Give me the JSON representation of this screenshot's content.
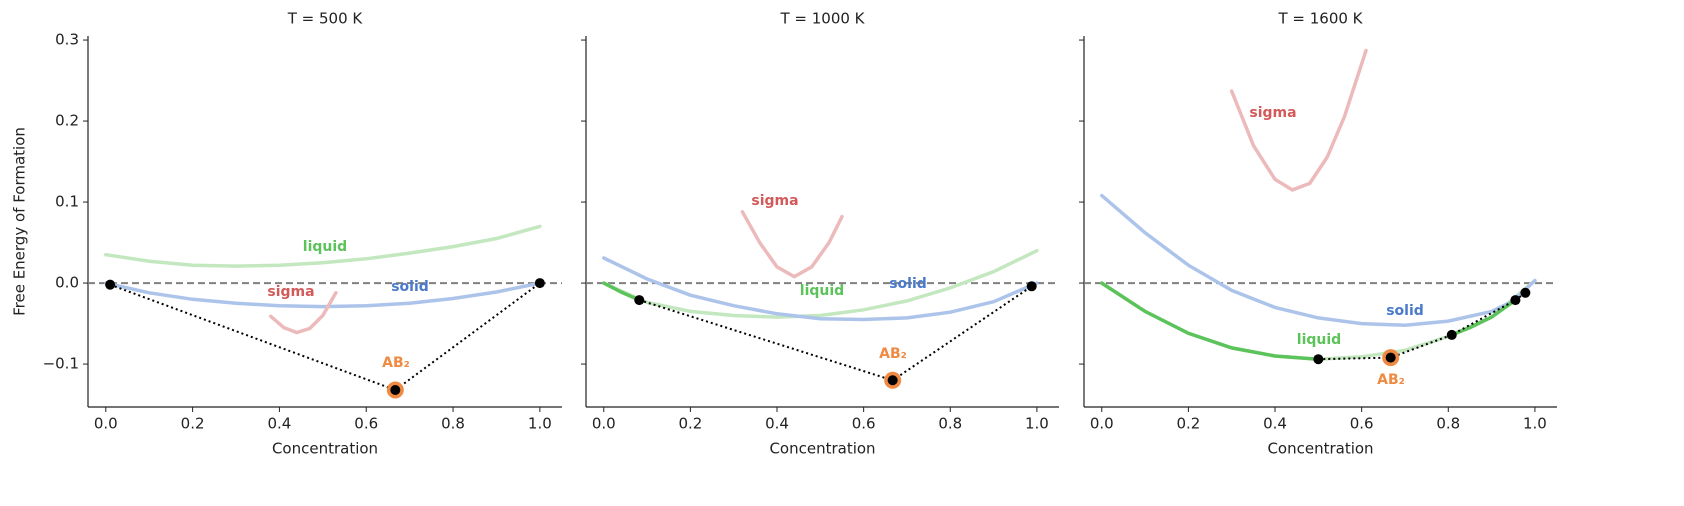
{
  "chart_data": [
    {
      "type": "line",
      "title": "T = 500 K",
      "xlabel": "Concentration",
      "ylabel": "Free Energy of Formation",
      "xlim": [
        -0.041,
        1.051
      ],
      "ylim": [
        -0.153,
        0.305
      ],
      "xticks": [
        {
          "value": 0,
          "label": "0.0"
        },
        0.2,
        0.4,
        0.6,
        0.8,
        {
          "value": 1,
          "label": "1.0"
        }
      ],
      "yticks": [
        {
          "value": -0.1,
          "label": "−0.1"
        },
        {
          "value": 0,
          "label": "0.0"
        },
        0.1,
        0.2,
        0.3
      ],
      "hline": 0,
      "series": [
        {
          "name": "liquid",
          "color": "#c3e7bf",
          "label_color": "#5cc35a",
          "x": [
            0,
            0.1,
            0.2,
            0.3,
            0.4,
            0.5,
            0.6,
            0.7,
            0.8,
            0.9,
            1.0
          ],
          "values": [
            0.035,
            0.027,
            0.022,
            0.021,
            0.022,
            0.025,
            0.03,
            0.037,
            0.045,
            0.055,
            0.07
          ]
        },
        {
          "name": "solid",
          "color": "#adc4ea",
          "label_color": "#4a7acb",
          "x": [
            0,
            0.1,
            0.2,
            0.3,
            0.4,
            0.5,
            0.6,
            0.7,
            0.8,
            0.9,
            1.0
          ],
          "values": [
            0,
            -0.012,
            -0.02,
            -0.025,
            -0.028,
            -0.029,
            -0.028,
            -0.025,
            -0.019,
            -0.011,
            0
          ]
        },
        {
          "name": "sigma",
          "color": "#ecbaba",
          "label_color": "#d35a5a",
          "x": [
            0.38,
            0.41,
            0.44,
            0.47,
            0.5,
            0.53
          ],
          "values": [
            -0.041,
            -0.055,
            -0.061,
            -0.056,
            -0.04,
            -0.012
          ]
        },
        {
          "color": "#000000",
          "style": "dotted",
          "marker": "dot",
          "x": [
            0.01,
            0.667,
            1.0
          ],
          "values": [
            -0.002,
            -0.132,
            0
          ]
        },
        {
          "name": "AB₂",
          "color": "#ef8a42",
          "label_color": "#ef8a42",
          "marker": "ring",
          "x": [
            0.667
          ],
          "values": [
            -0.132
          ]
        }
      ]
    },
    {
      "type": "line",
      "title": "T = 1000 K",
      "xlabel": "Concentration",
      "xlim": [
        -0.041,
        1.051
      ],
      "ylim": [
        -0.153,
        0.305
      ],
      "xticks": [
        {
          "value": 0,
          "label": "0.0"
        },
        0.2,
        0.4,
        0.6,
        0.8,
        {
          "value": 1,
          "label": "1.0"
        }
      ],
      "yticks": [
        -0.1,
        0,
        0.1,
        0.2,
        0.3
      ],
      "hline": 0,
      "series": [
        {
          "name": "liquid",
          "color": "#c3e7bf",
          "label_color": "#5cc35a",
          "x": [
            0,
            0.1,
            0.2,
            0.3,
            0.4,
            0.5,
            0.6,
            0.7,
            0.8,
            0.9,
            1.0
          ],
          "values": [
            0,
            -0.024,
            -0.035,
            -0.04,
            -0.042,
            -0.04,
            -0.033,
            -0.022,
            -0.006,
            0.014,
            0.04
          ]
        },
        {
          "name": "solid",
          "color": "#adc4ea",
          "label_color": "#4a7acb",
          "x": [
            0,
            0.1,
            0.2,
            0.3,
            0.4,
            0.5,
            0.6,
            0.7,
            0.8,
            0.9,
            1.0
          ],
          "values": [
            0.031,
            0.005,
            -0.015,
            -0.028,
            -0.038,
            -0.044,
            -0.045,
            -0.043,
            -0.036,
            -0.023,
            0
          ]
        },
        {
          "name": "sigma",
          "color": "#ecbaba",
          "label_color": "#d35a5a",
          "x": [
            0.32,
            0.36,
            0.4,
            0.44,
            0.48,
            0.52,
            0.55
          ],
          "values": [
            0.088,
            0.05,
            0.02,
            0.008,
            0.02,
            0.05,
            0.082
          ]
        },
        {
          "color": "#5cc35a",
          "x": [
            0,
            0.04,
            0.082
          ],
          "values": [
            0,
            -0.011,
            -0.021
          ]
        },
        {
          "color": "#000000",
          "style": "dotted",
          "marker": "dot",
          "x": [
            0.082,
            0.667,
            0.988
          ],
          "values": [
            -0.021,
            -0.12,
            -0.004
          ]
        },
        {
          "name": "AB₂",
          "color": "#ef8a42",
          "label_color": "#ef8a42",
          "marker": "ring",
          "x": [
            0.667
          ],
          "values": [
            -0.12
          ]
        }
      ]
    },
    {
      "type": "line",
      "title": "T = 1600 K",
      "xlabel": "Concentration",
      "xlim": [
        -0.041,
        1.051
      ],
      "ylim": [
        -0.153,
        0.305
      ],
      "xticks": [
        {
          "value": 0,
          "label": "0.0"
        },
        0.2,
        0.4,
        0.6,
        0.8,
        {
          "value": 1,
          "label": "1.0"
        }
      ],
      "yticks": [
        -0.1,
        0,
        0.1,
        0.2,
        0.3
      ],
      "hline": 0,
      "series": [
        {
          "name": "liquid",
          "color": "#c3e7bf",
          "label_color": "#5cc35a",
          "x": [
            0,
            0.1,
            0.2,
            0.3,
            0.4,
            0.5,
            0.6,
            0.7,
            0.8,
            0.9,
            1.0
          ],
          "values": [
            0,
            -0.035,
            -0.062,
            -0.08,
            -0.09,
            -0.094,
            -0.091,
            -0.083,
            -0.066,
            -0.042,
            0.003
          ]
        },
        {
          "name": "solid",
          "color": "#adc4ea",
          "label_color": "#4a7acb",
          "x": [
            0,
            0.1,
            0.2,
            0.3,
            0.4,
            0.5,
            0.6,
            0.7,
            0.8,
            0.9,
            0.95,
            1.0
          ],
          "values": [
            0.108,
            0.062,
            0.022,
            -0.009,
            -0.03,
            -0.043,
            -0.05,
            -0.052,
            -0.047,
            -0.035,
            -0.022,
            0.003
          ]
        },
        {
          "name": "sigma",
          "color": "#ecbaba",
          "label_color": "#d35a5a",
          "x": [
            0.3,
            0.35,
            0.4,
            0.44,
            0.48,
            0.52,
            0.56,
            0.61
          ],
          "values": [
            0.237,
            0.17,
            0.128,
            0.115,
            0.123,
            0.155,
            0.205,
            0.287
          ]
        },
        {
          "color": "#5cc35a",
          "x": [
            0,
            0.1,
            0.2,
            0.3,
            0.4,
            0.5,
            0.65,
            0.808,
            0.85,
            0.9,
            0.955
          ],
          "values": [
            0,
            -0.035,
            -0.062,
            -0.08,
            -0.09,
            -0.094,
            null,
            -0.064,
            -0.055,
            -0.042,
            -0.021
          ]
        },
        {
          "color": "#000000",
          "style": "dotted",
          "marker": "dot",
          "x": [
            0.5,
            0.667,
            0.808,
            0.955,
            0.978
          ],
          "values": [
            -0.094,
            -0.092,
            -0.064,
            -0.021,
            -0.012
          ]
        },
        {
          "name": "AB₂",
          "color": "#ef8a42",
          "label_color": "#ef8a42",
          "marker": "ring",
          "x": [
            0.667
          ],
          "values": [
            -0.092
          ]
        }
      ]
    }
  ]
}
